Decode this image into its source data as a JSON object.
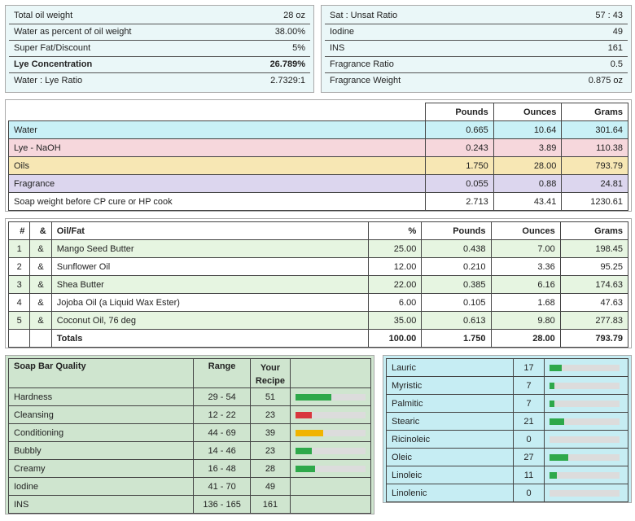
{
  "summary_left": [
    {
      "label": "Total oil weight",
      "value": "28 oz",
      "bold": false
    },
    {
      "label": "Water as percent of oil weight",
      "value": "38.00%",
      "bold": false
    },
    {
      "label": "Super Fat/Discount",
      "value": "5%",
      "bold": false
    },
    {
      "label": "Lye Concentration",
      "value": "26.789%",
      "bold": true
    },
    {
      "label": "Water : Lye Ratio",
      "value": "2.7329:1",
      "bold": false
    }
  ],
  "summary_right": [
    {
      "label": "Sat : Unsat Ratio",
      "value": "57 : 43"
    },
    {
      "label": "Iodine",
      "value": "49"
    },
    {
      "label": "INS",
      "value": "161"
    },
    {
      "label": "Fragrance Ratio",
      "value": "0.5"
    },
    {
      "label": "Fragrance Weight",
      "value": "0.875 oz"
    }
  ],
  "weights": {
    "headers": {
      "pounds": "Pounds",
      "ounces": "Ounces",
      "grams": "Grams"
    },
    "rows": [
      {
        "label": "Water",
        "pounds": "0.665",
        "ounces": "10.64",
        "grams": "301.64",
        "color": "#c9f1f7"
      },
      {
        "label": "Lye - NaOH",
        "pounds": "0.243",
        "ounces": "3.89",
        "grams": "110.38",
        "color": "#f6d7dc"
      },
      {
        "label": "Oils",
        "pounds": "1.750",
        "ounces": "28.00",
        "grams": "793.79",
        "color": "#f7e7b4"
      },
      {
        "label": "Fragrance",
        "pounds": "0.055",
        "ounces": "0.88",
        "grams": "24.81",
        "color": "#dcd6ee"
      },
      {
        "label": "Soap weight before CP cure or HP cook",
        "pounds": "2.713",
        "ounces": "43.41",
        "grams": "1230.61",
        "color": "#ffffff"
      }
    ]
  },
  "recipe": {
    "headers": {
      "num": "#",
      "amp": "&",
      "oil": "Oil/Fat",
      "pct": "%",
      "pounds": "Pounds",
      "ounces": "Ounces",
      "grams": "Grams"
    },
    "rows": [
      {
        "num": "1",
        "amp": "&",
        "oil": "Mango Seed Butter",
        "pct": "25.00",
        "pounds": "0.438",
        "ounces": "7.00",
        "grams": "198.45"
      },
      {
        "num": "2",
        "amp": "&",
        "oil": "Sunflower Oil",
        "pct": "12.00",
        "pounds": "0.210",
        "ounces": "3.36",
        "grams": "95.25"
      },
      {
        "num": "3",
        "amp": "&",
        "oil": "Shea Butter",
        "pct": "22.00",
        "pounds": "0.385",
        "ounces": "6.16",
        "grams": "174.63"
      },
      {
        "num": "4",
        "amp": "&",
        "oil": "Jojoba Oil (a Liquid Wax Ester)",
        "pct": "6.00",
        "pounds": "0.105",
        "ounces": "1.68",
        "grams": "47.63"
      },
      {
        "num": "5",
        "amp": "&",
        "oil": "Coconut Oil, 76 deg",
        "pct": "35.00",
        "pounds": "0.613",
        "ounces": "9.80",
        "grams": "277.83"
      }
    ],
    "totals": {
      "label": "Totals",
      "pct": "100.00",
      "pounds": "1.750",
      "ounces": "28.00",
      "grams": "793.79"
    }
  },
  "quality": {
    "headers": {
      "quality": "Soap Bar Quality",
      "range": "Range",
      "recipe": "Your Recipe"
    },
    "rows": [
      {
        "label": "Hardness",
        "range": "29 - 54",
        "value": "51",
        "bar": 0.51,
        "color": "#2ea84a"
      },
      {
        "label": "Cleansing",
        "range": "12 - 22",
        "value": "23",
        "bar": 0.23,
        "color": "#d9363e"
      },
      {
        "label": "Conditioning",
        "range": "44 - 69",
        "value": "39",
        "bar": 0.39,
        "color": "#f0b400"
      },
      {
        "label": "Bubbly",
        "range": "14 - 46",
        "value": "23",
        "bar": 0.23,
        "color": "#2ea84a"
      },
      {
        "label": "Creamy",
        "range": "16 - 48",
        "value": "28",
        "bar": 0.28,
        "color": "#2ea84a"
      },
      {
        "label": "Iodine",
        "range": "41 - 70",
        "value": "49",
        "bar": null,
        "color": ""
      },
      {
        "label": "INS",
        "range": "136 - 165",
        "value": "161",
        "bar": null,
        "color": ""
      }
    ]
  },
  "fatty_acids": [
    {
      "label": "Lauric",
      "value": "17",
      "bar": 0.17
    },
    {
      "label": "Myristic",
      "value": "7",
      "bar": 0.07
    },
    {
      "label": "Palmitic",
      "value": "7",
      "bar": 0.07
    },
    {
      "label": "Stearic",
      "value": "21",
      "bar": 0.21
    },
    {
      "label": "Ricinoleic",
      "value": "0",
      "bar": 0
    },
    {
      "label": "Oleic",
      "value": "27",
      "bar": 0.27
    },
    {
      "label": "Linoleic",
      "value": "11",
      "bar": 0.11
    },
    {
      "label": "Linolenic",
      "value": "0",
      "bar": 0
    }
  ],
  "colors": {
    "bar_green": "#2ea84a",
    "bar_track": "#dcdcdc"
  }
}
